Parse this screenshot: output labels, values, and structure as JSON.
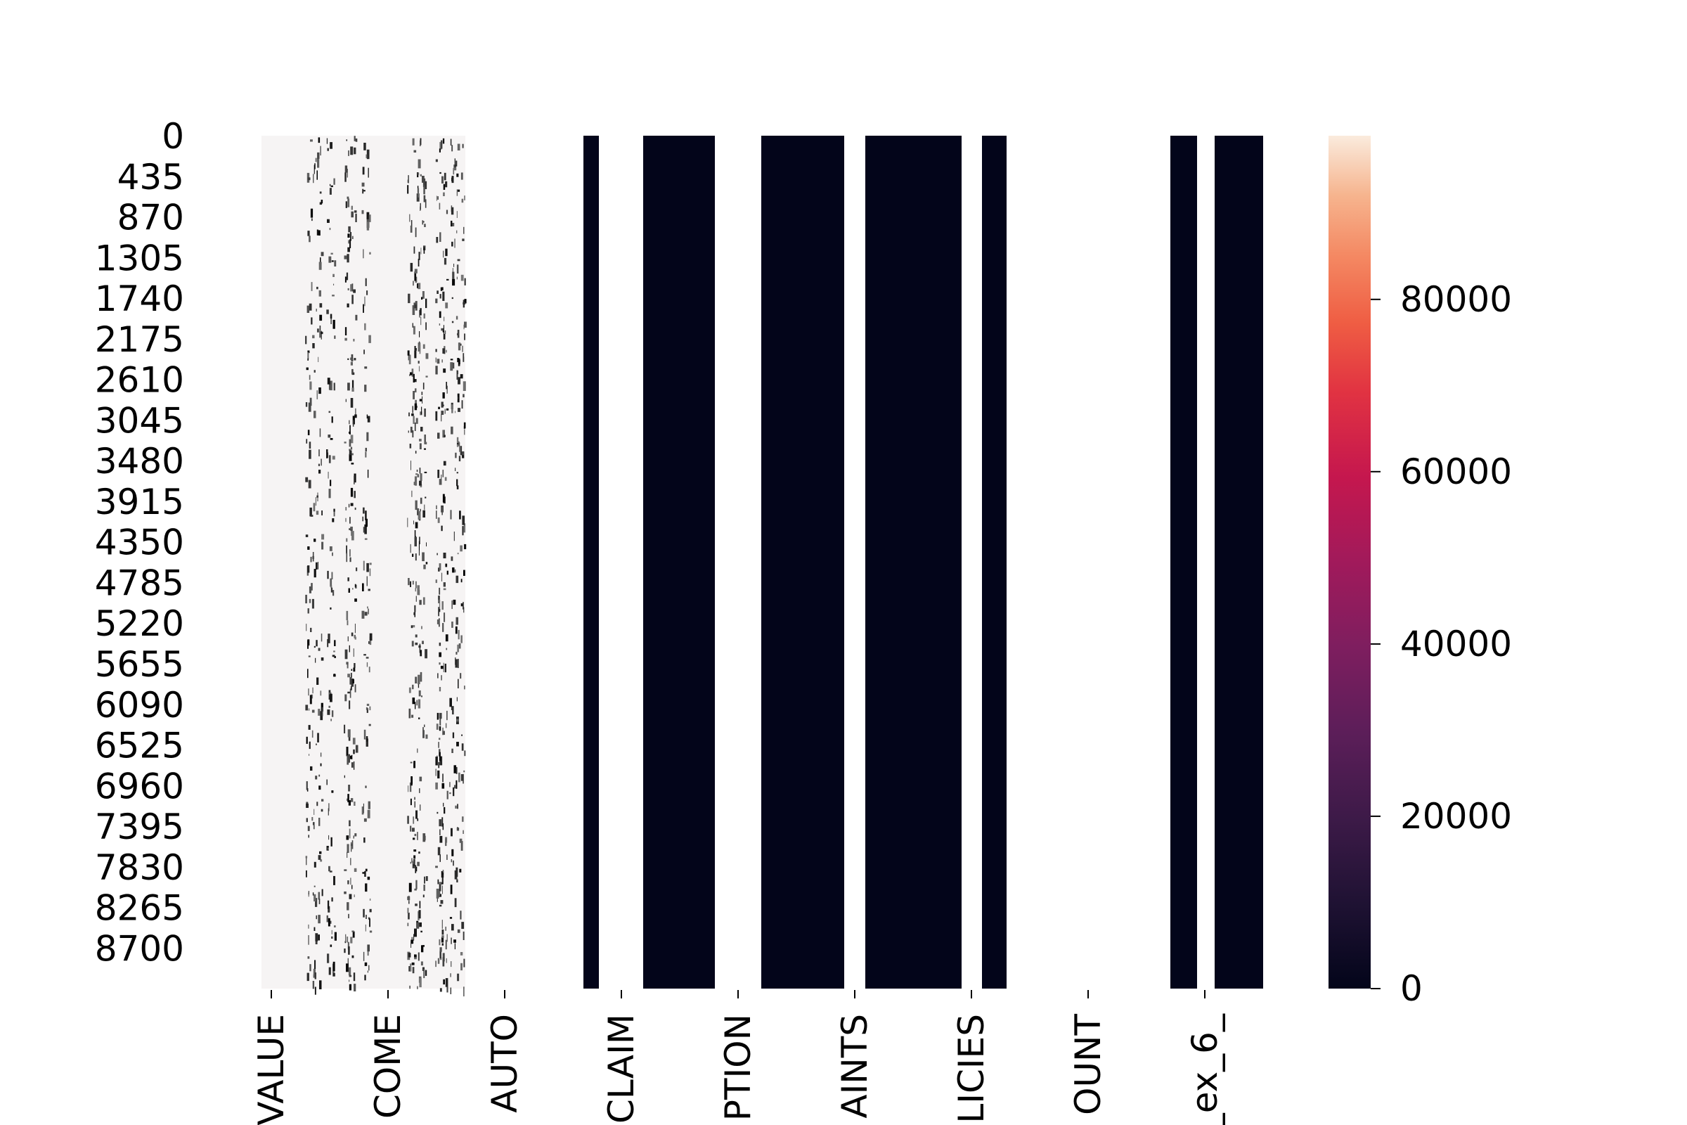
{
  "chart_data": {
    "type": "heatmap",
    "title": "",
    "xlabel": "",
    "ylabel": "",
    "y_tick_labels": [
      "0",
      "435",
      "870",
      "1305",
      "1740",
      "2175",
      "2610",
      "3045",
      "3480",
      "3915",
      "4350",
      "4785",
      "5220",
      "5655",
      "6090",
      "6525",
      "6960",
      "7395",
      "7830",
      "8265",
      "8700"
    ],
    "ylim": [
      0,
      9134
    ],
    "x_tick_labels": [
      "VALUE",
      "COME",
      "AUTO",
      "CLAIM",
      "PTION",
      "AINTS",
      "LICIES",
      "OUNT",
      "_ex_6_"
    ],
    "colorbar": {
      "range": [
        0,
        99000
      ],
      "tick_values": [
        0,
        20000,
        40000,
        60000,
        80000
      ],
      "tick_labels": [
        "0",
        "20000",
        "40000",
        "60000",
        "80000"
      ],
      "colormap": "rocket",
      "low_color": "#03051a",
      "high_color": "#faebdd"
    },
    "columns_pattern": [
      {
        "band": "1-5",
        "appearance": "near-white (high values)"
      },
      {
        "band": "6-10",
        "appearance": "mixed, scattered dark streaks"
      },
      {
        "band": "11-13",
        "appearance": "near-white"
      },
      {
        "band": "14",
        "appearance": "dark (near 0)"
      },
      {
        "band": "15",
        "appearance": "white"
      },
      {
        "band": "16-17",
        "appearance": "dark (near 0)"
      },
      {
        "band": "18",
        "appearance": "white"
      },
      {
        "band": "19-20",
        "appearance": "dark (near 0)"
      },
      {
        "band": "21",
        "appearance": "white"
      },
      {
        "band": "22-23",
        "appearance": "dark (near 0)"
      },
      {
        "band": "24",
        "appearance": "white"
      },
      {
        "band": "25",
        "appearance": "dark (near 0)"
      },
      {
        "band": "26-29",
        "appearance": "near-white"
      },
      {
        "band": "30",
        "appearance": "dark (near 0)"
      },
      {
        "band": "31",
        "appearance": "white"
      },
      {
        "band": "32",
        "appearance": "dark (near 0)"
      }
    ]
  }
}
